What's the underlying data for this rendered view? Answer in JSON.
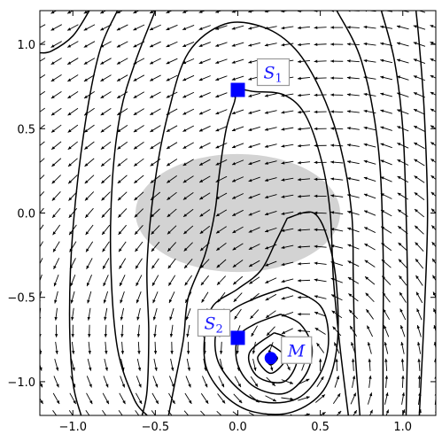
{
  "chart_data": {
    "type": "vector-field-contour",
    "title": "",
    "xlabel": "",
    "ylabel": "",
    "xlim": [
      -1.2,
      1.2
    ],
    "ylim": [
      -1.2,
      1.2
    ],
    "xticks": [
      -1.0,
      -0.5,
      0.0,
      0.5,
      1.0
    ],
    "yticks": [
      -1.0,
      -0.5,
      0.0,
      0.5,
      1.0
    ],
    "xtick_labels": [
      "−1.0",
      "−0.5",
      "0.0",
      "0.5",
      "1.0"
    ],
    "ytick_labels": [
      "−1.0",
      "−0.5",
      "0.0",
      "0.5",
      "1.0"
    ],
    "grid": false,
    "shaded_region": {
      "center": [
        0.0,
        0.0
      ],
      "radius_x": 0.62,
      "radius_y": 0.35,
      "color": "#d3d3d3"
    },
    "points": [
      {
        "name": "S",
        "sub": "1",
        "x": 0.0,
        "y": 0.73,
        "marker": "square",
        "color": "#0000ff"
      },
      {
        "name": "S",
        "sub": "2",
        "x": 0.0,
        "y": -0.74,
        "marker": "square",
        "color": "#0000ff"
      },
      {
        "name": "M",
        "sub": "",
        "x": 0.2,
        "y": -0.86,
        "marker": "circle",
        "color": "#0000ff"
      }
    ],
    "contours": [
      [
        [
          0.2,
          -0.83
        ],
        [
          0.17,
          -0.86
        ],
        [
          0.2,
          -0.9
        ],
        [
          0.24,
          -0.86
        ],
        [
          0.2,
          -0.83
        ]
      ],
      [
        [
          0.2,
          -0.78
        ],
        [
          0.12,
          -0.86
        ],
        [
          0.2,
          -0.95
        ],
        [
          0.29,
          -0.86
        ],
        [
          0.2,
          -0.78
        ]
      ],
      [
        [
          0.22,
          -0.71
        ],
        [
          0.07,
          -0.83
        ],
        [
          0.12,
          -0.97
        ],
        [
          0.28,
          -1.0
        ],
        [
          0.36,
          -0.87
        ],
        [
          0.31,
          -0.75
        ],
        [
          0.22,
          -0.71
        ]
      ],
      [
        [
          0.26,
          -0.6
        ],
        [
          0.1,
          -0.66
        ],
        [
          0.0,
          -0.74
        ],
        [
          0.0,
          -0.9
        ],
        [
          0.1,
          -1.03
        ],
        [
          0.28,
          -1.07
        ],
        [
          0.41,
          -0.96
        ],
        [
          0.45,
          -0.8
        ],
        [
          0.38,
          -0.66
        ],
        [
          0.26,
          -0.6
        ]
      ],
      [
        [
          0.3,
          -0.44
        ],
        [
          0.12,
          -0.5
        ],
        [
          -0.04,
          -0.58
        ],
        [
          -0.13,
          -0.7
        ],
        [
          -0.12,
          -0.88
        ],
        [
          0.0,
          -1.04
        ],
        [
          0.15,
          -1.12
        ],
        [
          0.36,
          -1.1
        ],
        [
          0.5,
          -0.95
        ],
        [
          0.55,
          -0.75
        ],
        [
          0.5,
          -0.55
        ],
        [
          0.3,
          -0.44
        ]
      ],
      [
        [
          0.3,
          -0.03
        ],
        [
          0.23,
          -0.17
        ],
        [
          0.14,
          -0.34
        ],
        [
          0.0,
          -0.45
        ],
        [
          -0.15,
          -0.55
        ],
        [
          -0.2,
          -0.72
        ],
        [
          -0.19,
          -0.92
        ],
        [
          -0.07,
          -1.09
        ],
        [
          0.1,
          -1.18
        ],
        [
          0.33,
          -1.18
        ],
        [
          0.52,
          -1.05
        ],
        [
          0.6,
          -0.8
        ],
        [
          0.6,
          -0.45
        ],
        [
          0.55,
          -0.17
        ],
        [
          0.46,
          0.0
        ],
        [
          0.3,
          -0.03
        ]
      ],
      [
        [
          -1.2,
          0.95
        ],
        [
          -1.13,
          0.96
        ],
        [
          -1.0,
          1.05
        ],
        [
          -0.9,
          1.2
        ]
      ],
      [
        [
          -0.73,
          1.2
        ],
        [
          -0.84,
          0.95
        ],
        [
          -0.93,
          0.5
        ],
        [
          -1.0,
          -0.1
        ],
        [
          -1.02,
          -0.6
        ],
        [
          -1.0,
          -1.0
        ],
        [
          -0.95,
          -1.2
        ]
      ],
      [
        [
          -0.5,
          1.2
        ],
        [
          -0.62,
          0.9
        ],
        [
          -0.71,
          0.6
        ],
        [
          -0.76,
          0.2
        ],
        [
          -0.77,
          -0.3
        ],
        [
          -0.73,
          -0.8
        ],
        [
          -0.63,
          -1.1
        ],
        [
          -0.55,
          -1.2
        ]
      ],
      [
        [
          -0.58,
          -1.2
        ],
        [
          -0.55,
          -1.05
        ],
        [
          -0.54,
          -0.7
        ],
        [
          -0.55,
          -0.3
        ],
        [
          -0.5,
          0.2
        ],
        [
          -0.42,
          0.6
        ],
        [
          -0.3,
          0.95
        ],
        [
          -0.08,
          1.12
        ],
        [
          0.16,
          1.1
        ],
        [
          0.35,
          0.97
        ],
        [
          0.5,
          0.73
        ],
        [
          0.62,
          0.4
        ],
        [
          0.69,
          0.0
        ],
        [
          0.7,
          -0.4
        ],
        [
          0.71,
          -0.8
        ],
        [
          0.74,
          -1.2
        ]
      ],
      [
        [
          -0.42,
          -1.2
        ],
        [
          -0.38,
          -1.0
        ],
        [
          -0.33,
          -0.75
        ],
        [
          -0.3,
          -0.5
        ],
        [
          -0.2,
          -0.25
        ],
        [
          -0.14,
          0.0
        ],
        [
          -0.11,
          0.25
        ],
        [
          -0.07,
          0.5
        ],
        [
          -0.02,
          0.66
        ],
        [
          0.0,
          0.73
        ],
        [
          0.1,
          0.72
        ],
        [
          0.28,
          0.7
        ],
        [
          0.41,
          0.58
        ],
        [
          0.51,
          0.3
        ],
        [
          0.56,
          0.0
        ],
        [
          0.58,
          -0.4
        ],
        [
          0.62,
          -0.8
        ],
        [
          0.67,
          -1.2
        ]
      ],
      [
        [
          0.88,
          -1.2
        ],
        [
          0.88,
          -0.8
        ],
        [
          0.88,
          -0.2
        ],
        [
          0.85,
          0.4
        ],
        [
          0.75,
          0.9
        ],
        [
          0.6,
          1.2
        ]
      ],
      [
        [
          1.02,
          -1.2
        ],
        [
          1.03,
          -0.6
        ],
        [
          1.02,
          0.0
        ],
        [
          1.0,
          0.5
        ],
        [
          0.95,
          0.9
        ],
        [
          0.87,
          1.2
        ]
      ],
      [
        [
          1.1,
          -1.2
        ],
        [
          1.13,
          -0.6
        ],
        [
          1.15,
          0.0
        ],
        [
          1.13,
          0.6
        ],
        [
          1.1,
          1.0
        ],
        [
          1.08,
          1.2
        ]
      ]
    ]
  }
}
